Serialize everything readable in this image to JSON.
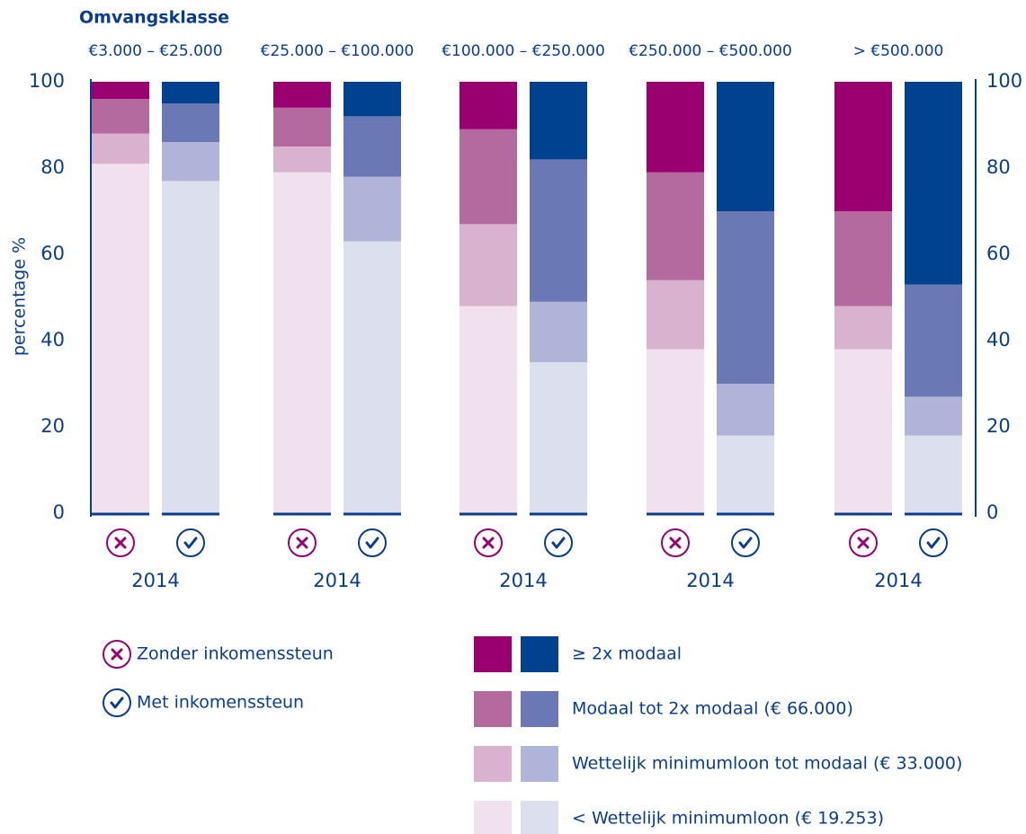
{
  "chart_data": {
    "type": "bar",
    "stacked": true,
    "title": "Omvangsklasse",
    "y_label": "percentage %",
    "categories": [
      "€3.000 – €25.000",
      "€25.000 – €100.000",
      "€100.000 – €250.000",
      "€250.000 – €500.000",
      ">  €500.000"
    ],
    "sublabels": [
      "2014",
      "2014",
      "2014",
      "2014",
      "2014"
    ],
    "bar_groups": [
      {
        "name": "Zonder inkomenssteun",
        "color": "#9b0070"
      },
      {
        "name": "Met inkomenssteun",
        "color": "#0a3d8f"
      }
    ],
    "segments": [
      {
        "name": "< Wettelijk minimumloon (€ 19.253)",
        "colors": [
          "#f1e1ee",
          "#dcdfee"
        ],
        "values": [
          [
            81,
            77
          ],
          [
            79,
            63
          ],
          [
            48,
            35
          ],
          [
            38,
            18
          ],
          [
            38,
            18
          ]
        ]
      },
      {
        "name": "Wettelijk minimumloon tot modaal (€ 33.000)",
        "colors": [
          "#d8b2cf",
          "#b0b4d8"
        ],
        "values": [
          [
            7,
            9
          ],
          [
            6,
            15
          ],
          [
            19,
            14
          ],
          [
            16,
            12
          ],
          [
            10,
            9
          ]
        ]
      },
      {
        "name": "Modaal tot 2x modaal (€ 66.000)",
        "colors": [
          "#b46a9e",
          "#6a78b6"
        ],
        "values": [
          [
            8,
            9
          ],
          [
            9,
            14
          ],
          [
            22,
            33
          ],
          [
            25,
            40
          ],
          [
            22,
            26
          ]
        ]
      },
      {
        "name": "≥ 2x modaal",
        "colors": [
          "#9b0070",
          "#00428f"
        ],
        "values": [
          [
            4,
            5
          ],
          [
            6,
            8
          ],
          [
            11,
            18
          ],
          [
            21,
            30
          ],
          [
            30,
            47
          ]
        ]
      }
    ],
    "ylim": [
      0,
      100
    ],
    "yticks": [
      0,
      20,
      40,
      60,
      80,
      100
    ],
    "grid": false
  }
}
